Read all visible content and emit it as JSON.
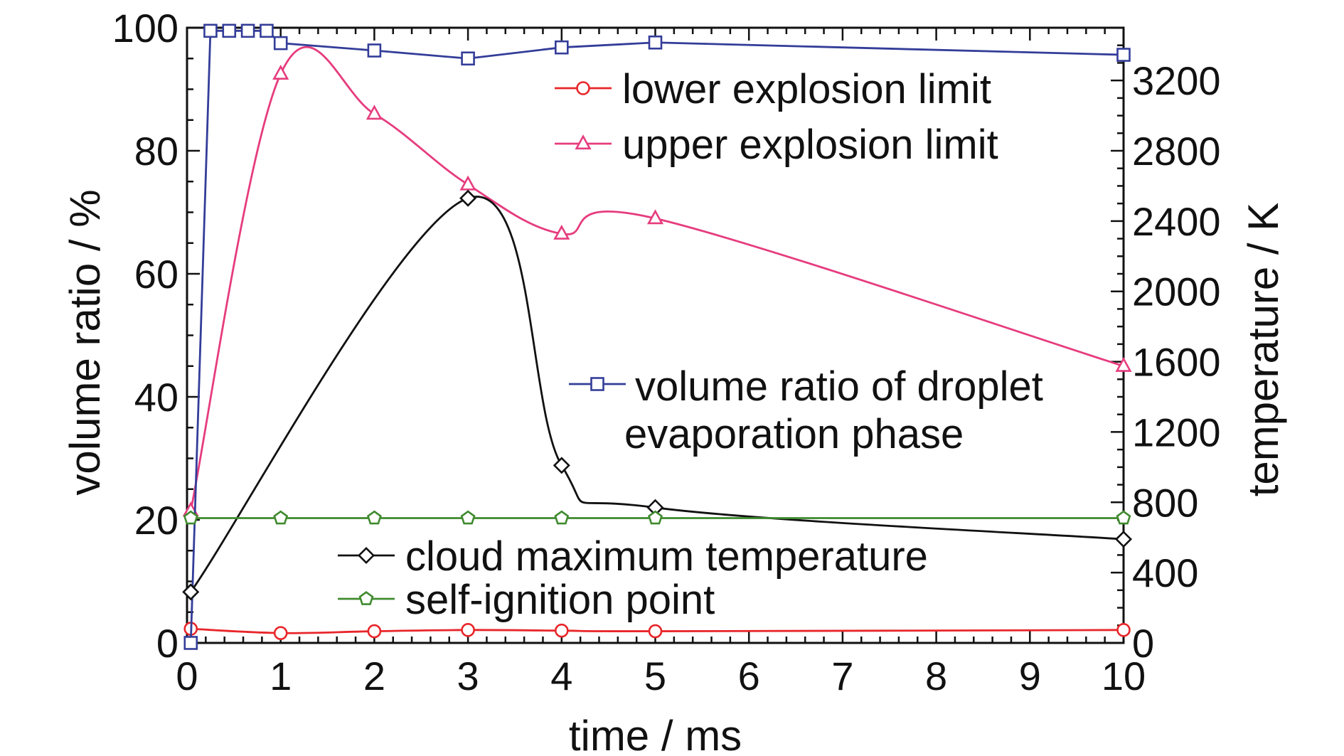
{
  "chart_data": {
    "type": "line",
    "xlabel": "time / ms",
    "ylabel": "volume ratio / %",
    "y2label": "temperature / K",
    "xlim": [
      0,
      10
    ],
    "ylim": [
      0,
      100
    ],
    "y2lim": [
      0,
      3500
    ],
    "x_ticks": [
      "0",
      "1",
      "2",
      "3",
      "4",
      "5",
      "6",
      "7",
      "8",
      "9",
      "10"
    ],
    "y_ticks": [
      "0",
      "20",
      "40",
      "60",
      "80",
      "100"
    ],
    "y2_ticks": [
      "0",
      "400",
      "800",
      "1200",
      "1600",
      "2000",
      "2400",
      "2800",
      "3200"
    ],
    "series": [
      {
        "name": "lower explosion limit",
        "axis": "left",
        "color": "#e8262a",
        "marker": "circle",
        "x": [
          0.04,
          1,
          2,
          3,
          4,
          5,
          10
        ],
        "y": [
          2.3,
          1.6,
          1.9,
          2.1,
          2.0,
          1.9,
          2.1
        ]
      },
      {
        "name": "upper explosion limit",
        "axis": "left",
        "color": "#e63c7e",
        "marker": "triangle",
        "x": [
          0.04,
          1,
          2,
          3,
          4,
          5,
          10
        ],
        "y": [
          21.5,
          92.5,
          86,
          74.5,
          66.5,
          69,
          45
        ]
      },
      {
        "name": "volume ratio of droplet evaporation phase",
        "axis": "left",
        "color": "#333d99",
        "marker": "square",
        "x": [
          0.04,
          0.25,
          0.45,
          0.65,
          0.85,
          1,
          2,
          3,
          4,
          5,
          10
        ],
        "y": [
          0,
          99.5,
          99.5,
          99.5,
          99.5,
          97.5,
          96.3,
          95,
          96.8,
          97.6,
          95.6
        ]
      },
      {
        "name": "cloud maximum temperature",
        "axis": "right",
        "color": "#111111",
        "marker": "diamond",
        "x": [
          0.04,
          3,
          4,
          5,
          10
        ],
        "y": [
          290,
          2530,
          1010,
          770,
          590
        ]
      },
      {
        "name": "self-ignition point",
        "axis": "right",
        "color": "#3f8a2e",
        "marker": "pentagon",
        "x": [
          0.04,
          1,
          2,
          3,
          4,
          5,
          10
        ],
        "y": [
          710,
          710,
          710,
          710,
          710,
          710,
          710
        ]
      }
    ],
    "legend": [
      {
        "series": 0,
        "lines": [
          "lower explosion limit"
        ]
      },
      {
        "series": 1,
        "lines": [
          "upper explosion limit"
        ]
      },
      {
        "series": 2,
        "lines": [
          "volume ratio of droplet",
          "evaporation phase"
        ]
      },
      {
        "series": 3,
        "lines": [
          "cloud maximum temperature"
        ]
      },
      {
        "series": 4,
        "lines": [
          "self-ignition point"
        ]
      }
    ]
  }
}
